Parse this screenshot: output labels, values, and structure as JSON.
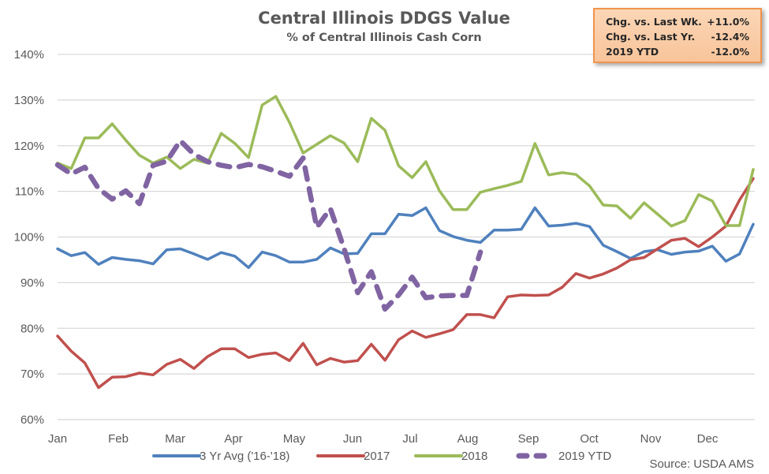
{
  "chart_data": {
    "type": "line",
    "title": "Central Illinois DDGS Value",
    "subtitle": "% of Central Illinois Cash Corn",
    "xlabel": "",
    "ylabel": "",
    "ylim": [
      60,
      140
    ],
    "yticks": [
      60,
      70,
      80,
      90,
      100,
      110,
      120,
      130,
      140
    ],
    "ytick_labels": [
      "60%",
      "70%",
      "80%",
      "90%",
      "100%",
      "110%",
      "120%",
      "130%",
      "140%"
    ],
    "x_categories": [
      "Jan",
      "Feb",
      "Mar",
      "Apr",
      "May",
      "Jun",
      "Jul",
      "Aug",
      "Sep",
      "Oct",
      "Nov",
      "Dec"
    ],
    "x_unit": "week",
    "grid": true,
    "legend_position": "bottom",
    "source": "Source: USDA AMS",
    "series": [
      {
        "name": "3 Yr Avg ('16-'18)",
        "color": "#4f81bd",
        "dash": false,
        "values": [
          97.4,
          95.9,
          96.6,
          94.0,
          95.5,
          95.1,
          94.8,
          94.1,
          97.2,
          97.4,
          96.3,
          95.1,
          96.6,
          95.8,
          93.3,
          96.7,
          95.9,
          94.5,
          94.5,
          95.1,
          97.6,
          96.3,
          96.4,
          100.7,
          100.7,
          105.0,
          104.7,
          106.4,
          101.4,
          100.1,
          99.3,
          98.8,
          101.5,
          101.5,
          101.7,
          106.4,
          102.4,
          102.6,
          103.0,
          102.3,
          98.2,
          96.8,
          95.3,
          96.8,
          97.2,
          96.2,
          96.7,
          96.9,
          98.0,
          94.7,
          96.3,
          102.8
        ]
      },
      {
        "name": "2017",
        "color": "#c0504d",
        "dash": false,
        "values": [
          78.3,
          75.0,
          72.4,
          67.0,
          69.3,
          69.4,
          70.2,
          69.8,
          72.1,
          73.2,
          71.2,
          73.8,
          75.5,
          75.5,
          73.6,
          74.3,
          74.6,
          72.9,
          76.7,
          72.0,
          73.4,
          72.6,
          72.9,
          76.5,
          73.0,
          77.5,
          79.4,
          78.0,
          78.8,
          79.7,
          83.0,
          83.0,
          82.3,
          86.9,
          87.3,
          87.2,
          87.3,
          89.0,
          92.0,
          91.0,
          91.9,
          93.2,
          95.0,
          95.5,
          97.4,
          99.3,
          99.7,
          97.9,
          100.0,
          102.4,
          108.1,
          112.8
        ]
      },
      {
        "name": "2018",
        "color": "#9bbb59",
        "dash": false,
        "values": [
          116.2,
          115.0,
          121.7,
          121.7,
          124.8,
          121.2,
          117.9,
          116.2,
          117.5,
          115.0,
          117.0,
          116.2,
          122.7,
          120.5,
          117.4,
          128.9,
          130.8,
          125.1,
          118.4,
          120.3,
          122.2,
          120.6,
          116.5,
          126.0,
          123.4,
          115.6,
          113.0,
          116.5,
          110.1,
          106.0,
          106.0,
          109.8,
          110.6,
          111.3,
          112.2,
          120.5,
          113.6,
          114.1,
          113.7,
          111.2,
          107.0,
          106.8,
          104.1,
          107.5,
          105.0,
          102.4,
          103.6,
          109.3,
          107.9,
          102.5,
          102.5,
          114.8
        ]
      },
      {
        "name": "2019 YTD",
        "color": "#8064a2",
        "dash": true,
        "values": [
          115.8,
          113.8,
          115.3,
          110.6,
          108.3,
          110.1,
          107.3,
          115.7,
          116.6,
          121.1,
          118.1,
          116.5,
          115.7,
          115.2,
          115.9,
          115.4,
          114.4,
          113.3,
          117.3,
          102.1,
          106.2,
          97.5,
          87.8,
          92.4,
          84.2,
          87.3,
          91.2,
          86.7,
          87.1,
          87.2,
          87.2,
          96.7
        ]
      }
    ]
  },
  "stats_box": {
    "rows": [
      {
        "label": "Chg. vs. Last Wk.",
        "value": "+11.0%"
      },
      {
        "label": "Chg. vs. Last Yr.",
        "value": "-12.4%"
      },
      {
        "label": "2019 YTD",
        "value": "-12.0%"
      }
    ]
  }
}
